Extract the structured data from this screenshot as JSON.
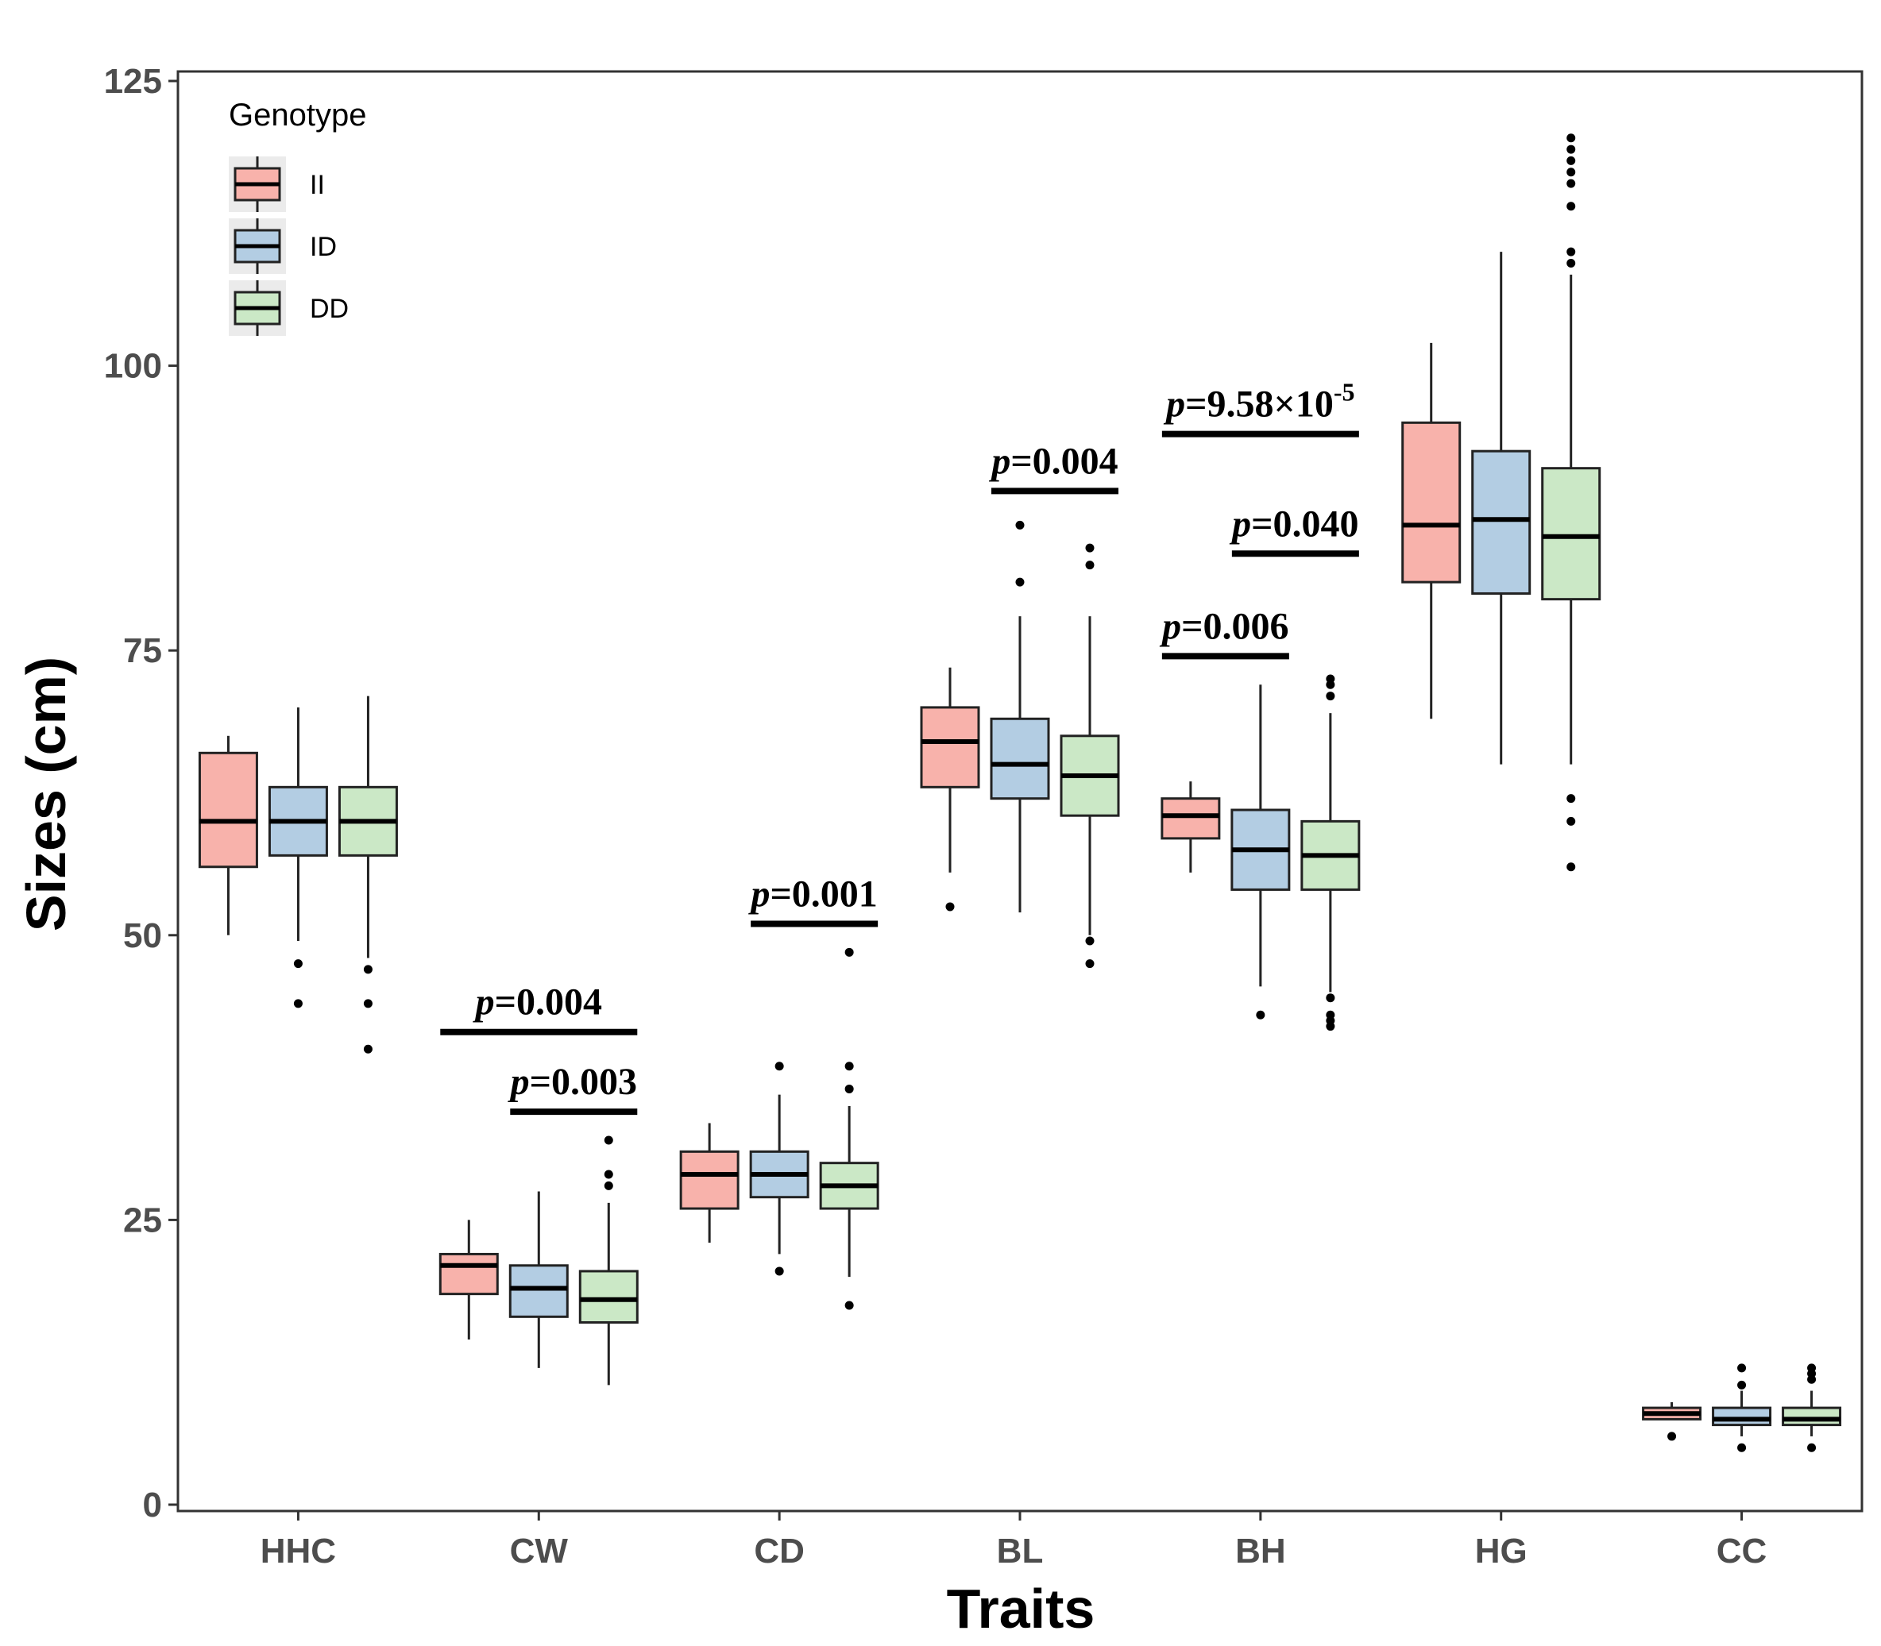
{
  "chart_data": {
    "type": "boxplot",
    "title": "",
    "xlabel": "Traits",
    "ylabel": "Sizes (cm)",
    "ylim": [
      0,
      125
    ],
    "yticks": [
      0,
      25,
      50,
      75,
      100,
      125
    ],
    "grid": false,
    "legend": {
      "title": "Genotype",
      "position": "top-left",
      "entries": [
        {
          "name": "II",
          "color": "#f8b2ab"
        },
        {
          "name": "ID",
          "color": "#b3cde3"
        },
        {
          "name": "DD",
          "color": "#cbe8c6"
        }
      ]
    },
    "categories": [
      "HHC",
      "CW",
      "CD",
      "BL",
      "BH",
      "HG",
      "CC"
    ],
    "series": [
      {
        "name": "II",
        "color": "#f8b2ab",
        "boxes": [
          {
            "min": 50,
            "q1": 56,
            "median": 60,
            "q3": 66,
            "max": 67.5,
            "outliers": []
          },
          {
            "min": 14.5,
            "q1": 18.5,
            "median": 21,
            "q3": 22,
            "max": 25,
            "outliers": []
          },
          {
            "min": 23,
            "q1": 26,
            "median": 29,
            "q3": 31,
            "max": 33.5,
            "outliers": []
          },
          {
            "min": 55.5,
            "q1": 63,
            "median": 67,
            "q3": 70,
            "max": 73.5,
            "outliers": [
              52.5
            ]
          },
          {
            "min": 55.5,
            "q1": 58.5,
            "median": 60.5,
            "q3": 62,
            "max": 63.5,
            "outliers": []
          },
          {
            "min": 69,
            "q1": 81,
            "median": 86,
            "q3": 95,
            "max": 102,
            "outliers": []
          },
          {
            "min": 7.5,
            "q1": 7.5,
            "median": 8,
            "q3": 8.5,
            "max": 9,
            "outliers": [
              6
            ]
          }
        ]
      },
      {
        "name": "ID",
        "color": "#b3cde3",
        "boxes": [
          {
            "min": 49.5,
            "q1": 57,
            "median": 60,
            "q3": 63,
            "max": 70,
            "outliers": [
              47.5,
              44
            ]
          },
          {
            "min": 12,
            "q1": 16.5,
            "median": 19,
            "q3": 21,
            "max": 27.5,
            "outliers": []
          },
          {
            "min": 22,
            "q1": 27,
            "median": 29,
            "q3": 31,
            "max": 36,
            "outliers": [
              20.5,
              38.5
            ]
          },
          {
            "min": 52,
            "q1": 62,
            "median": 65,
            "q3": 69,
            "max": 78,
            "outliers": [
              81,
              86
            ]
          },
          {
            "min": 45.5,
            "q1": 54,
            "median": 57.5,
            "q3": 61,
            "max": 72,
            "outliers": [
              43
            ]
          },
          {
            "min": 65,
            "q1": 80,
            "median": 86.5,
            "q3": 92.5,
            "max": 110,
            "outliers": []
          },
          {
            "min": 6,
            "q1": 7,
            "median": 7.5,
            "q3": 8.5,
            "max": 10,
            "outliers": [
              5,
              10.5,
              12
            ]
          }
        ]
      },
      {
        "name": "DD",
        "color": "#cbe8c6",
        "boxes": [
          {
            "min": 48,
            "q1": 57,
            "median": 60,
            "q3": 63,
            "max": 71,
            "outliers": [
              47,
              44,
              40
            ]
          },
          {
            "min": 10.5,
            "q1": 16,
            "median": 18,
            "q3": 20.5,
            "max": 26.5,
            "outliers": [
              28,
              29,
              32
            ]
          },
          {
            "min": 20,
            "q1": 26,
            "median": 28,
            "q3": 30,
            "max": 35,
            "outliers": [
              17.5,
              36.5,
              38.5,
              48.5
            ]
          },
          {
            "min": 50,
            "q1": 60.5,
            "median": 64,
            "q3": 67.5,
            "max": 78,
            "outliers": [
              47.5,
              49.5,
              82.5,
              84
            ]
          },
          {
            "min": 45,
            "q1": 54,
            "median": 57,
            "q3": 60,
            "max": 69.5,
            "outliers": [
              42,
              42.5,
              43,
              44.5,
              71,
              72,
              72.5
            ]
          },
          {
            "min": 65,
            "q1": 79.5,
            "median": 85,
            "q3": 91,
            "max": 108,
            "outliers": [
              56,
              60,
              62,
              109,
              110,
              114,
              116,
              117,
              118,
              119,
              120
            ]
          },
          {
            "min": 6,
            "q1": 7,
            "median": 7.5,
            "q3": 8.5,
            "max": 10,
            "outliers": [
              5,
              11,
              11.5,
              12
            ]
          }
        ]
      }
    ],
    "annotations": [
      {
        "trait": "CW",
        "from": "II",
        "to": "DD",
        "y": 41.5,
        "text": "0.004"
      },
      {
        "trait": "CW",
        "from": "ID",
        "to": "DD",
        "y": 34.5,
        "text": "0.003"
      },
      {
        "trait": "CD",
        "from": "ID",
        "to": "DD",
        "y": 51,
        "text": "0.001"
      },
      {
        "trait": "BL",
        "from": "ID",
        "to": "DD",
        "y": 89,
        "text": "0.004"
      },
      {
        "trait": "BH",
        "from": "II",
        "to": "ID",
        "y": 74.5,
        "text": "0.006"
      },
      {
        "trait": "BH",
        "from": "ID",
        "to": "DD",
        "y": 83.5,
        "text": "0.040"
      },
      {
        "trait": "BH",
        "from": "II",
        "to": "DD",
        "y": 94,
        "text": "9.58×10",
        "superscript": "-5"
      }
    ]
  }
}
